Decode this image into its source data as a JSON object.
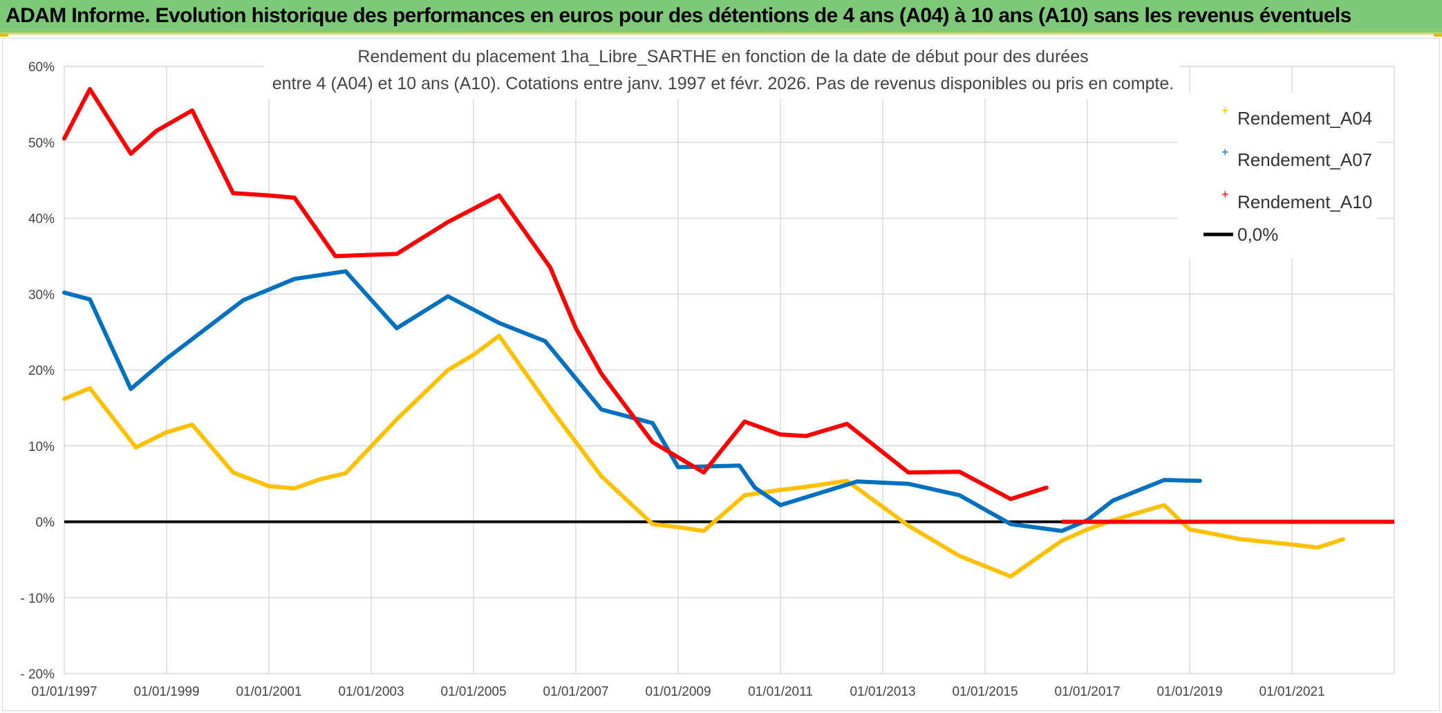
{
  "header": {
    "title": "ADAM Informe. Evolution historique des performances en euros pour des détentions de 4 ans (A04) à 10 ans (A10) sans les revenus éventuels",
    "bg_color": "#7ec87a"
  },
  "chart_data": {
    "type": "line",
    "title_line1": "Rendement du placement 1ha_Libre_SARTHE en fonction de la date de début pour des durées",
    "title_line2": "entre 4 (A04) et 10 ans (A10). Cotations entre janv. 1997 et févr. 2026. Pas de revenus disponibles ou pris en compte.",
    "xlim": [
      1997.0,
      2023.0
    ],
    "ylim": [
      -20,
      60
    ],
    "y_ticks": [
      {
        "value": 60,
        "label": "60%"
      },
      {
        "value": 50,
        "label": "50%"
      },
      {
        "value": 40,
        "label": "40%"
      },
      {
        "value": 30,
        "label": "30%"
      },
      {
        "value": 20,
        "label": "20%"
      },
      {
        "value": 10,
        "label": "10%"
      },
      {
        "value": 0,
        "label": "0%"
      },
      {
        "value": -10,
        "label": "- 10%"
      },
      {
        "value": -20,
        "label": "- 20%"
      }
    ],
    "x_ticks": [
      {
        "value": 1997,
        "label": "01/01/1997"
      },
      {
        "value": 1999,
        "label": "01/01/1999"
      },
      {
        "value": 2001,
        "label": "01/01/2001"
      },
      {
        "value": 2003,
        "label": "01/01/2003"
      },
      {
        "value": 2005,
        "label": "01/01/2005"
      },
      {
        "value": 2007,
        "label": "01/01/2007"
      },
      {
        "value": 2009,
        "label": "01/01/2009"
      },
      {
        "value": 2011,
        "label": "01/01/2011"
      },
      {
        "value": 2013,
        "label": "01/01/2013"
      },
      {
        "value": 2015,
        "label": "01/01/2015"
      },
      {
        "value": 2017,
        "label": "01/01/2017"
      },
      {
        "value": 2019,
        "label": "01/01/2019"
      },
      {
        "value": 2021,
        "label": "01/01/2021"
      }
    ],
    "grid": true,
    "legend_position": "top-right",
    "series": [
      {
        "name": "Rendement_A04",
        "color": "#ffc000",
        "points": [
          [
            1997.0,
            16.2
          ],
          [
            1997.5,
            17.6
          ],
          [
            1998.4,
            9.8
          ],
          [
            1999.0,
            11.8
          ],
          [
            1999.5,
            12.8
          ],
          [
            2000.3,
            6.5
          ],
          [
            2001.0,
            4.7
          ],
          [
            2001.5,
            4.4
          ],
          [
            2002.0,
            5.6
          ],
          [
            2002.5,
            6.4
          ],
          [
            2003.5,
            13.5
          ],
          [
            2004.5,
            20.0
          ],
          [
            2005.0,
            22.0
          ],
          [
            2005.5,
            24.5
          ],
          [
            2006.5,
            15.0
          ],
          [
            2007.5,
            6.0
          ],
          [
            2008.5,
            -0.3
          ],
          [
            2009.0,
            -0.7
          ],
          [
            2009.5,
            -1.2
          ],
          [
            2010.3,
            3.5
          ],
          [
            2011.0,
            4.2
          ],
          [
            2011.5,
            4.6
          ],
          [
            2012.3,
            5.4
          ],
          [
            2013.5,
            -0.5
          ],
          [
            2014.5,
            -4.5
          ],
          [
            2015.5,
            -7.2
          ],
          [
            2016.5,
            -2.5
          ],
          [
            2017.0,
            -1.0
          ],
          [
            2017.5,
            0.2
          ],
          [
            2018.5,
            2.2
          ],
          [
            2019.0,
            -1.0
          ],
          [
            2020.0,
            -2.3
          ],
          [
            2021.0,
            -3.0
          ],
          [
            2021.5,
            -3.4
          ],
          [
            2022.0,
            -2.3
          ]
        ]
      },
      {
        "name": "Rendement_A07",
        "color": "#0070c0",
        "points": [
          [
            1997.0,
            30.2
          ],
          [
            1997.5,
            29.3
          ],
          [
            1998.3,
            17.5
          ],
          [
            1999.0,
            21.5
          ],
          [
            2000.5,
            29.2
          ],
          [
            2001.5,
            32.0
          ],
          [
            2002.5,
            33.0
          ],
          [
            2003.5,
            25.5
          ],
          [
            2004.5,
            29.7
          ],
          [
            2005.5,
            26.2
          ],
          [
            2006.4,
            23.8
          ],
          [
            2007.5,
            14.8
          ],
          [
            2008.5,
            13.0
          ],
          [
            2009.0,
            7.2
          ],
          [
            2010.2,
            7.4
          ],
          [
            2010.5,
            4.5
          ],
          [
            2011.0,
            2.2
          ],
          [
            2012.5,
            5.3
          ],
          [
            2013.5,
            5.0
          ],
          [
            2014.5,
            3.5
          ],
          [
            2015.5,
            -0.3
          ],
          [
            2016.5,
            -1.2
          ],
          [
            2017.0,
            0.2
          ],
          [
            2017.5,
            2.8
          ],
          [
            2018.5,
            5.5
          ],
          [
            2019.2,
            5.4
          ]
        ]
      },
      {
        "name": "Rendement_A10",
        "color": "#ff0000",
        "points": [
          [
            1997.0,
            50.5
          ],
          [
            1997.5,
            57.0
          ],
          [
            1998.3,
            48.5
          ],
          [
            1998.8,
            51.5
          ],
          [
            1999.5,
            54.2
          ],
          [
            2000.3,
            43.3
          ],
          [
            2001.0,
            43.0
          ],
          [
            2001.5,
            42.7
          ],
          [
            2002.3,
            35.0
          ],
          [
            2003.5,
            35.3
          ],
          [
            2004.5,
            39.5
          ],
          [
            2005.5,
            43.0
          ],
          [
            2006.5,
            33.5
          ],
          [
            2007.0,
            25.5
          ],
          [
            2007.5,
            19.5
          ],
          [
            2008.5,
            10.5
          ],
          [
            2009.5,
            6.5
          ],
          [
            2010.3,
            13.2
          ],
          [
            2011.0,
            11.5
          ],
          [
            2011.5,
            11.3
          ],
          [
            2012.3,
            12.9
          ],
          [
            2013.5,
            6.5
          ],
          [
            2014.5,
            6.6
          ],
          [
            2015.5,
            3.0
          ],
          [
            2016.2,
            4.5
          ]
        ],
        "tail_points": [
          [
            2016.5,
            0.0
          ],
          [
            2023.0,
            0.0
          ]
        ]
      }
    ],
    "reference_line": {
      "name": "0,0%",
      "value": 0,
      "color": "#000000"
    }
  }
}
